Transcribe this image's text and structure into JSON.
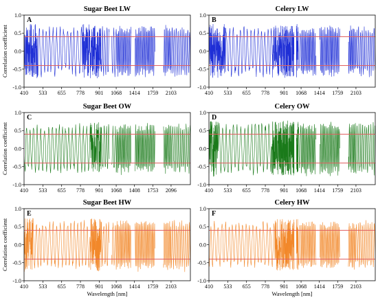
{
  "chart_data": [
    {
      "type": "line",
      "panel": "A",
      "title": "Sugar Beet LW",
      "ylabel": "Correlation coefficient",
      "xlabel": "",
      "x_tick_labels": [
        "410",
        "533",
        "655",
        "778",
        "901",
        "1068",
        "1414",
        "1759",
        "2103"
      ],
      "y_tick_labels": [
        "-1.0",
        "-0.5",
        "0.0",
        "0.5",
        "1.0"
      ],
      "ylim": [
        -1.0,
        1.0
      ],
      "grid": false,
      "threshold_lines": [
        0.4,
        -0.4
      ],
      "threshold_color": "#e06060",
      "series": [
        {
          "color": "#1f2fd6",
          "dense_regions": [
            [
              410,
              500
            ],
            [
              790,
              920
            ]
          ],
          "amplitude": 0.72
        }
      ]
    },
    {
      "type": "line",
      "panel": "B",
      "title": "Celery LW",
      "ylabel": "",
      "xlabel": "",
      "x_tick_labels": [
        "410",
        "533",
        "655",
        "778",
        "901",
        "1068",
        "1414",
        "1759",
        "2103"
      ],
      "y_tick_labels": [
        "-1.0",
        "-0.5",
        "0.0",
        "0.5",
        "1.0"
      ],
      "ylim": [
        -1.0,
        1.0
      ],
      "grid": false,
      "threshold_lines": [
        0.4,
        -0.4
      ],
      "threshold_color": "#e06060",
      "series": [
        {
          "color": "#1f2fd6",
          "dense_regions": [
            [
              410,
              520
            ],
            [
              820,
              1040
            ]
          ],
          "amplitude": 0.72
        }
      ]
    },
    {
      "type": "line",
      "panel": "C",
      "title": "Sugar Beet OW",
      "ylabel": "Correlation coefficient",
      "xlabel": "",
      "x_tick_labels": [
        "410",
        "533",
        "655",
        "778",
        "901",
        "1068",
        "1408",
        "1753",
        "2096"
      ],
      "y_tick_labels": [
        "-1.0",
        "-0.5",
        "0.0",
        "0.5",
        "1.0"
      ],
      "ylim": [
        -1.0,
        1.0
      ],
      "grid": false,
      "threshold_lines": [
        0.4,
        -0.4
      ],
      "threshold_color": "#e06060",
      "series": [
        {
          "color": "#1a7a1a",
          "dense_regions": [
            [
              840,
              920
            ]
          ],
          "amplitude": 0.7
        }
      ]
    },
    {
      "type": "line",
      "panel": "D",
      "title": "Celery OW",
      "ylabel": "",
      "xlabel": "",
      "x_tick_labels": [
        "410",
        "533",
        "655",
        "778",
        "901",
        "1068",
        "1414",
        "1759",
        "2103"
      ],
      "y_tick_labels": [
        "-1.0",
        "-0.5",
        "0.0",
        "0.5",
        "1.0"
      ],
      "ylim": [
        -1.0,
        1.0
      ],
      "grid": false,
      "threshold_lines": [
        0.4,
        -0.4
      ],
      "threshold_color": "#e06060",
      "series": [
        {
          "color": "#1a7a1a",
          "dense_regions": [
            [
              410,
              470
            ],
            [
              820,
              1040
            ]
          ],
          "amplitude": 0.74
        }
      ]
    },
    {
      "type": "line",
      "panel": "E",
      "title": "Sugar Beet HW",
      "ylabel": "Correlation coefficient",
      "xlabel": "Wavelength [nm]",
      "x_tick_labels": [
        "410",
        "533",
        "655",
        "778",
        "901",
        "1068",
        "1414",
        "1759",
        "2103"
      ],
      "y_tick_labels": [
        "-1.0",
        "-0.5",
        "0.0",
        "0.5",
        "1.0"
      ],
      "ylim": [
        -1.0,
        1.0
      ],
      "grid": false,
      "threshold_lines": [
        0.4,
        -0.4
      ],
      "threshold_color": "#e06060",
      "series": [
        {
          "color": "#f2882a",
          "dense_regions": [
            [
              410,
              470
            ],
            [
              840,
              920
            ]
          ],
          "amplitude": 0.72
        }
      ]
    },
    {
      "type": "line",
      "panel": "F",
      "title": "Celery HW",
      "ylabel": "",
      "xlabel": "Wavelength [nm]",
      "x_tick_labels": [
        "410",
        "533",
        "655",
        "778",
        "901",
        "1068",
        "1414",
        "1759",
        "2103"
      ],
      "y_tick_labels": [
        "-1.0",
        "-0.5",
        "0.0",
        "0.5",
        "1.0"
      ],
      "ylim": [
        -1.0,
        1.0
      ],
      "grid": false,
      "threshold_lines": [
        0.4,
        -0.4
      ],
      "threshold_color": "#e06060",
      "series": [
        {
          "color": "#f2882a",
          "dense_regions": [
            [
              840,
              1040
            ]
          ],
          "amplitude": 0.68
        }
      ]
    }
  ]
}
